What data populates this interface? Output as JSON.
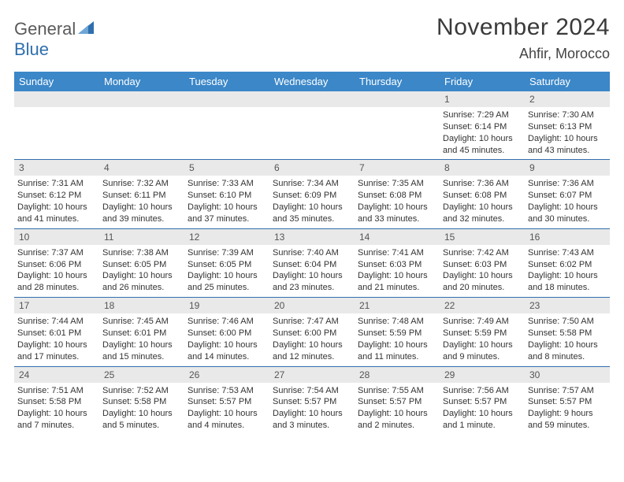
{
  "logo": {
    "word1": "General",
    "word2": "Blue"
  },
  "title": "November 2024",
  "location": "Ahfir, Morocco",
  "colors": {
    "header_bg": "#3b87c8",
    "header_fg": "#ffffff",
    "rule": "#2f6fae",
    "daynum_bg": "#e9e9e9",
    "text": "#333333",
    "logo_gray": "#5a5a5a",
    "logo_blue": "#2f6fae"
  },
  "weekdays": [
    "Sunday",
    "Monday",
    "Tuesday",
    "Wednesday",
    "Thursday",
    "Friday",
    "Saturday"
  ],
  "weeks": [
    [
      null,
      null,
      null,
      null,
      null,
      {
        "n": "1",
        "sunrise": "7:29 AM",
        "sunset": "6:14 PM",
        "daylight": "10 hours and 45 minutes."
      },
      {
        "n": "2",
        "sunrise": "7:30 AM",
        "sunset": "6:13 PM",
        "daylight": "10 hours and 43 minutes."
      }
    ],
    [
      {
        "n": "3",
        "sunrise": "7:31 AM",
        "sunset": "6:12 PM",
        "daylight": "10 hours and 41 minutes."
      },
      {
        "n": "4",
        "sunrise": "7:32 AM",
        "sunset": "6:11 PM",
        "daylight": "10 hours and 39 minutes."
      },
      {
        "n": "5",
        "sunrise": "7:33 AM",
        "sunset": "6:10 PM",
        "daylight": "10 hours and 37 minutes."
      },
      {
        "n": "6",
        "sunrise": "7:34 AM",
        "sunset": "6:09 PM",
        "daylight": "10 hours and 35 minutes."
      },
      {
        "n": "7",
        "sunrise": "7:35 AM",
        "sunset": "6:08 PM",
        "daylight": "10 hours and 33 minutes."
      },
      {
        "n": "8",
        "sunrise": "7:36 AM",
        "sunset": "6:08 PM",
        "daylight": "10 hours and 32 minutes."
      },
      {
        "n": "9",
        "sunrise": "7:36 AM",
        "sunset": "6:07 PM",
        "daylight": "10 hours and 30 minutes."
      }
    ],
    [
      {
        "n": "10",
        "sunrise": "7:37 AM",
        "sunset": "6:06 PM",
        "daylight": "10 hours and 28 minutes."
      },
      {
        "n": "11",
        "sunrise": "7:38 AM",
        "sunset": "6:05 PM",
        "daylight": "10 hours and 26 minutes."
      },
      {
        "n": "12",
        "sunrise": "7:39 AM",
        "sunset": "6:05 PM",
        "daylight": "10 hours and 25 minutes."
      },
      {
        "n": "13",
        "sunrise": "7:40 AM",
        "sunset": "6:04 PM",
        "daylight": "10 hours and 23 minutes."
      },
      {
        "n": "14",
        "sunrise": "7:41 AM",
        "sunset": "6:03 PM",
        "daylight": "10 hours and 21 minutes."
      },
      {
        "n": "15",
        "sunrise": "7:42 AM",
        "sunset": "6:03 PM",
        "daylight": "10 hours and 20 minutes."
      },
      {
        "n": "16",
        "sunrise": "7:43 AM",
        "sunset": "6:02 PM",
        "daylight": "10 hours and 18 minutes."
      }
    ],
    [
      {
        "n": "17",
        "sunrise": "7:44 AM",
        "sunset": "6:01 PM",
        "daylight": "10 hours and 17 minutes."
      },
      {
        "n": "18",
        "sunrise": "7:45 AM",
        "sunset": "6:01 PM",
        "daylight": "10 hours and 15 minutes."
      },
      {
        "n": "19",
        "sunrise": "7:46 AM",
        "sunset": "6:00 PM",
        "daylight": "10 hours and 14 minutes."
      },
      {
        "n": "20",
        "sunrise": "7:47 AM",
        "sunset": "6:00 PM",
        "daylight": "10 hours and 12 minutes."
      },
      {
        "n": "21",
        "sunrise": "7:48 AM",
        "sunset": "5:59 PM",
        "daylight": "10 hours and 11 minutes."
      },
      {
        "n": "22",
        "sunrise": "7:49 AM",
        "sunset": "5:59 PM",
        "daylight": "10 hours and 9 minutes."
      },
      {
        "n": "23",
        "sunrise": "7:50 AM",
        "sunset": "5:58 PM",
        "daylight": "10 hours and 8 minutes."
      }
    ],
    [
      {
        "n": "24",
        "sunrise": "7:51 AM",
        "sunset": "5:58 PM",
        "daylight": "10 hours and 7 minutes."
      },
      {
        "n": "25",
        "sunrise": "7:52 AM",
        "sunset": "5:58 PM",
        "daylight": "10 hours and 5 minutes."
      },
      {
        "n": "26",
        "sunrise": "7:53 AM",
        "sunset": "5:57 PM",
        "daylight": "10 hours and 4 minutes."
      },
      {
        "n": "27",
        "sunrise": "7:54 AM",
        "sunset": "5:57 PM",
        "daylight": "10 hours and 3 minutes."
      },
      {
        "n": "28",
        "sunrise": "7:55 AM",
        "sunset": "5:57 PM",
        "daylight": "10 hours and 2 minutes."
      },
      {
        "n": "29",
        "sunrise": "7:56 AM",
        "sunset": "5:57 PM",
        "daylight": "10 hours and 1 minute."
      },
      {
        "n": "30",
        "sunrise": "7:57 AM",
        "sunset": "5:57 PM",
        "daylight": "9 hours and 59 minutes."
      }
    ]
  ],
  "labels": {
    "sunrise": "Sunrise:",
    "sunset": "Sunset:",
    "daylight": "Daylight:"
  }
}
